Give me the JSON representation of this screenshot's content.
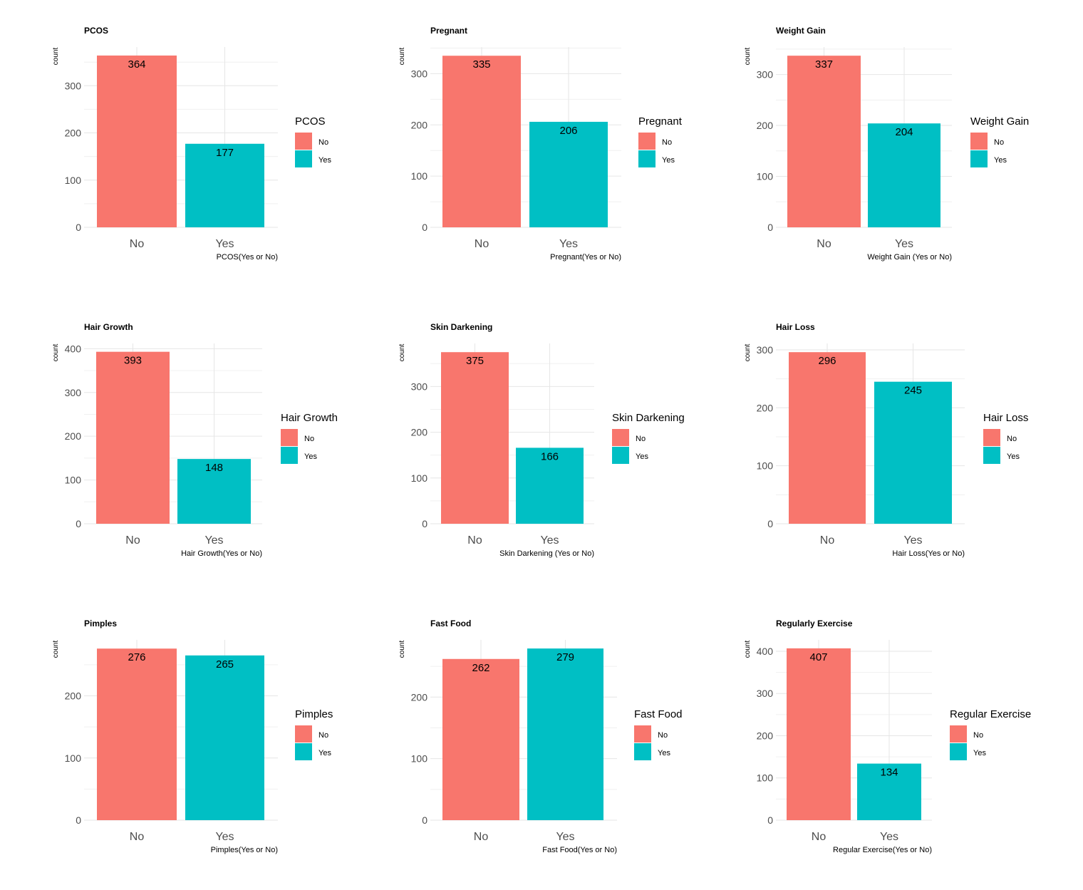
{
  "colors": {
    "no": "#F8766D",
    "yes": "#00BFC4",
    "grid": "#E6E6E6",
    "tick": "#4D4D4D"
  },
  "chart_data": [
    {
      "type": "bar",
      "title": "PCOS",
      "categories": [
        "No",
        "Yes"
      ],
      "values": [
        364,
        177
      ],
      "xlabel": "PCOS(Yes or No)",
      "ylabel": "count",
      "yticks": [
        0,
        100,
        200,
        300
      ],
      "ylim": [
        0,
        382
      ],
      "legend": {
        "title": "PCOS",
        "entries": [
          "No",
          "Yes"
        ],
        "position": "right"
      }
    },
    {
      "type": "bar",
      "title": "Pregnant",
      "categories": [
        "No",
        "Yes"
      ],
      "values": [
        335,
        206
      ],
      "xlabel": "Pregnant(Yes or No)",
      "ylabel": "count",
      "yticks": [
        0,
        100,
        200,
        300
      ],
      "ylim": [
        0,
        352
      ],
      "legend": {
        "title": "Pregnant",
        "entries": [
          "No",
          "Yes"
        ],
        "position": "right"
      }
    },
    {
      "type": "bar",
      "title": "Weight Gain",
      "categories": [
        "No",
        "Yes"
      ],
      "values": [
        337,
        204
      ],
      "xlabel": "Weight Gain (Yes or No)",
      "ylabel": "count",
      "yticks": [
        0,
        100,
        200,
        300
      ],
      "ylim": [
        0,
        354
      ],
      "legend": {
        "title": "Weight Gain",
        "entries": [
          "No",
          "Yes"
        ],
        "position": "right"
      }
    },
    {
      "type": "bar",
      "title": "Hair Growth",
      "categories": [
        "No",
        "Yes"
      ],
      "values": [
        393,
        148
      ],
      "xlabel": "Hair Growth(Yes or No)",
      "ylabel": "count",
      "yticks": [
        0,
        100,
        200,
        300,
        400
      ],
      "ylim": [
        0,
        412
      ],
      "legend": {
        "title": "Hair Growth",
        "entries": [
          "No",
          "Yes"
        ],
        "position": "right"
      }
    },
    {
      "type": "bar",
      "title": "Skin Darkening",
      "categories": [
        "No",
        "Yes"
      ],
      "values": [
        375,
        166
      ],
      "xlabel": "Skin Darkening (Yes or No)",
      "ylabel": "count",
      "yticks": [
        0,
        100,
        200,
        300
      ],
      "ylim": [
        0,
        394
      ],
      "legend": {
        "title": "Skin Darkening",
        "entries": [
          "No",
          "Yes"
        ],
        "position": "right"
      }
    },
    {
      "type": "bar",
      "title": "Hair Loss",
      "categories": [
        "No",
        "Yes"
      ],
      "values": [
        296,
        245
      ],
      "xlabel": "Hair Loss(Yes or No)",
      "ylabel": "count",
      "yticks": [
        0,
        100,
        200,
        300
      ],
      "ylim": [
        0,
        311
      ],
      "legend": {
        "title": "Hair Loss",
        "entries": [
          "No",
          "Yes"
        ],
        "position": "right"
      }
    },
    {
      "type": "bar",
      "title": "Pimples",
      "categories": [
        "No",
        "Yes"
      ],
      "values": [
        276,
        265
      ],
      "xlabel": "Pimples(Yes or No)",
      "ylabel": "count",
      "yticks": [
        0,
        100,
        200
      ],
      "ylim": [
        0,
        290
      ],
      "legend": {
        "title": "Pimples",
        "entries": [
          "No",
          "Yes"
        ],
        "position": "right"
      }
    },
    {
      "type": "bar",
      "title": "Fast Food",
      "categories": [
        "No",
        "Yes"
      ],
      "values": [
        262,
        279
      ],
      "xlabel": "Fast Food(Yes or No)",
      "ylabel": "count",
      "yticks": [
        0,
        100,
        200
      ],
      "ylim": [
        0,
        293
      ],
      "legend": {
        "title": "Fast Food",
        "entries": [
          "No",
          "Yes"
        ],
        "position": "right"
      }
    },
    {
      "type": "bar",
      "title": "Regularly Exercise",
      "categories": [
        "No",
        "Yes"
      ],
      "values": [
        407,
        134
      ],
      "xlabel": "Regular Exercise(Yes or No)",
      "ylabel": "count",
      "yticks": [
        0,
        100,
        200,
        300,
        400
      ],
      "ylim": [
        0,
        427
      ],
      "legend": {
        "title": "Regular Exercise",
        "entries": [
          "No",
          "Yes"
        ],
        "position": "right"
      }
    }
  ]
}
